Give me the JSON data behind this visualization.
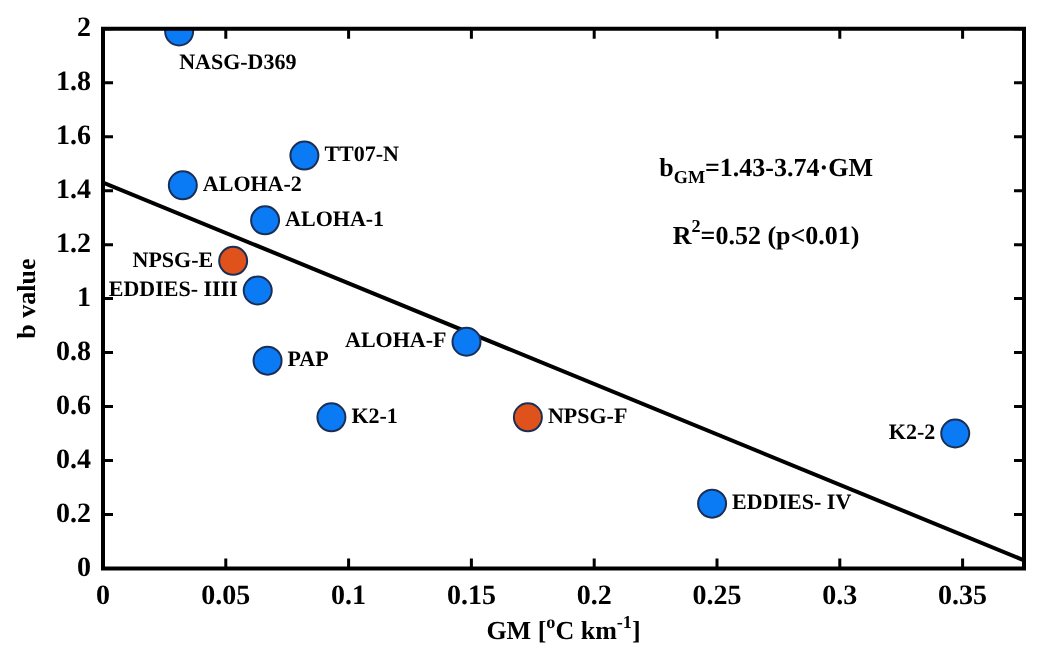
{
  "chart_data": {
    "type": "scatter",
    "xlabel": "GM [$^{o}$C km$^{-1}$]",
    "ylabel": "b value",
    "xlim": [
      0,
      0.375
    ],
    "xticks": [
      0,
      0.05,
      0.1,
      0.15,
      0.2,
      0.25,
      0.3,
      0.35
    ],
    "ylim": [
      0,
      2
    ],
    "yticks": [
      0,
      0.2,
      0.4,
      0.6,
      0.8,
      1,
      1.2,
      1.4,
      1.6,
      1.8,
      2
    ],
    "legend": false,
    "marker": "circle",
    "series": [
      {
        "x": [
          0.031,
          0.082,
          0.0325,
          0.066,
          0.053,
          0.063,
          0.148,
          0.067,
          0.093,
          0.173,
          0.248,
          0.347
        ],
        "values": [
          1.99,
          1.53,
          1.42,
          1.29,
          1.14,
          1.03,
          0.84,
          0.77,
          0.56,
          0.56,
          0.24,
          0.5
        ],
        "colors": [
          "#0a7af5",
          "#0a7af5",
          "#0a7af5",
          "#0a7af5",
          "#e0521c",
          "#0a7af5",
          "#0a7af5",
          "#0a7af5",
          "#0a7af5",
          "#e0521c",
          "#0a7af5",
          "#0a7af5"
        ]
      },
      {
        "type": "line",
        "x": [
          0,
          0.375
        ],
        "values": [
          1.43,
          0.03
        ],
        "color": "#000000",
        "marker": "none"
      }
    ],
    "annotations": [
      {
        "text": "NASG-D369",
        "x": 0.031,
        "y": 1.99
      },
      {
        "text": "TT07-N",
        "x": 0.082,
        "y": 1.53
      },
      {
        "text": "ALOHA-2",
        "x": 0.0325,
        "y": 1.42
      },
      {
        "text": "ALOHA-1",
        "x": 0.066,
        "y": 1.29
      },
      {
        "text": "NPSG-E",
        "x": 0.053,
        "y": 1.14
      },
      {
        "text": "EDDIES- IIII",
        "x": 0.063,
        "y": 1.03
      },
      {
        "text": "ALOHA-F",
        "x": 0.148,
        "y": 0.84
      },
      {
        "text": "PAP",
        "x": 0.067,
        "y": 0.77
      },
      {
        "text": "K2-1",
        "x": 0.093,
        "y": 0.56
      },
      {
        "text": "NPSG-F",
        "x": 0.173,
        "y": 0.56
      },
      {
        "text": "EDDIES- IV",
        "x": 0.248,
        "y": 0.24
      },
      {
        "text": "K2-2",
        "x": 0.347,
        "y": 0.5
      },
      "b$_{GM}$=1.43-3.74·GM",
      "R$^{2}$=0.52 (p<0.01)"
    ]
  }
}
